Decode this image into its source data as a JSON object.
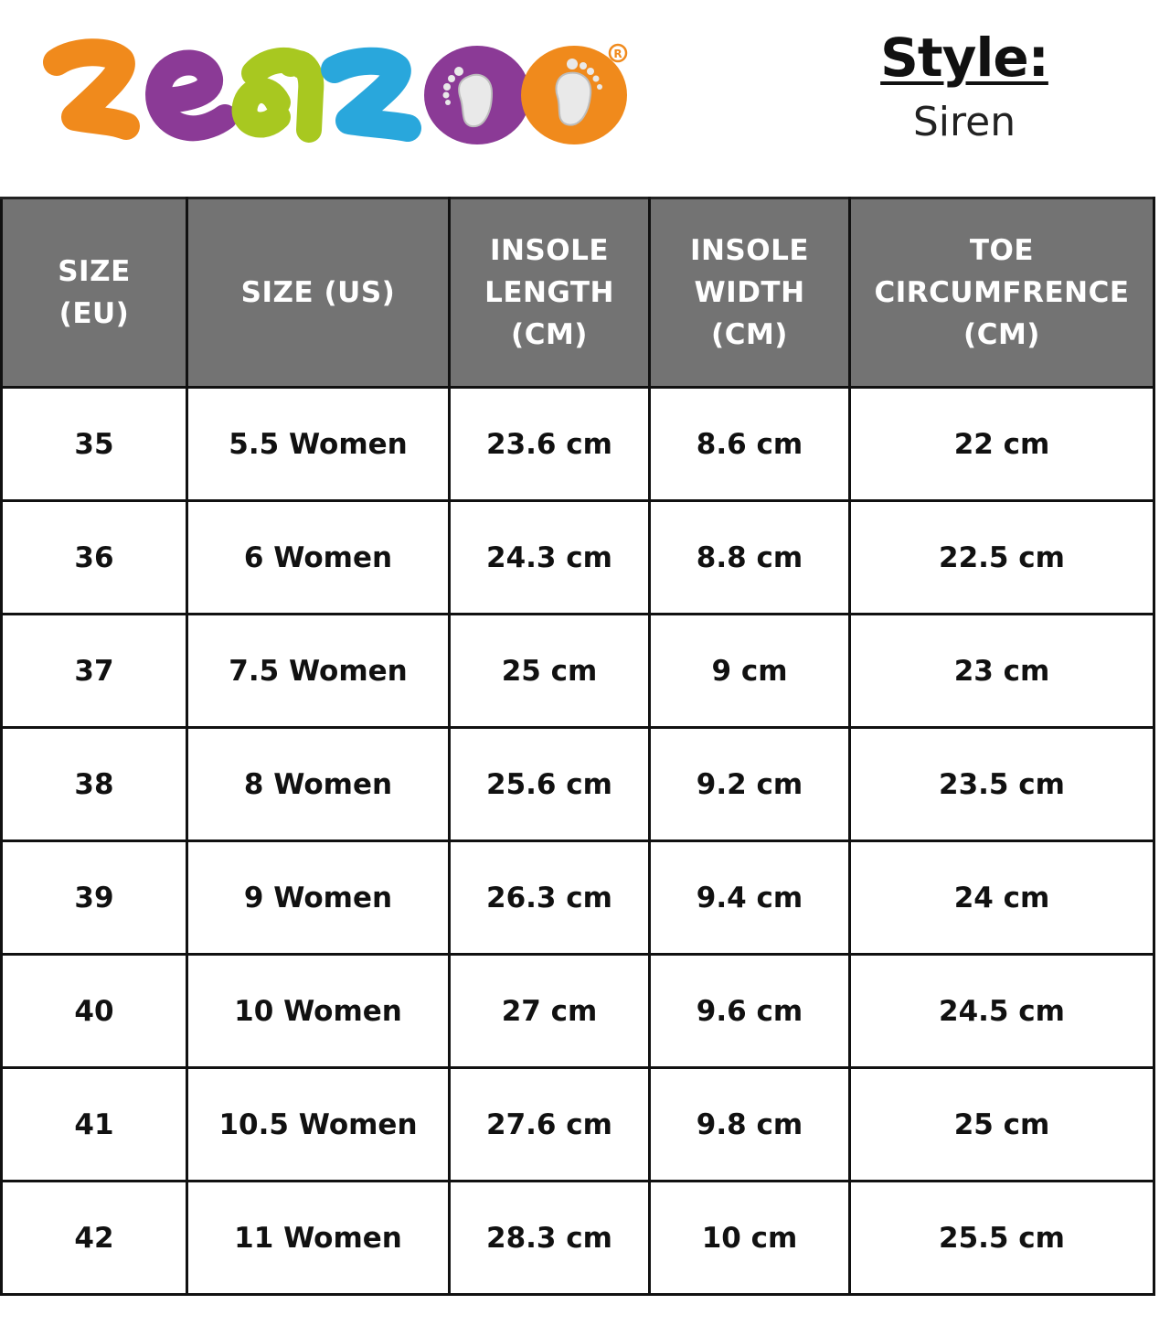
{
  "brand": {
    "logo_text": "zeazoo",
    "trademark": "®",
    "colors": [
      "#F08A1C",
      "#8B3A96",
      "#A8C820",
      "#29A7DC",
      "#8B3A96",
      "#F08A1C"
    ]
  },
  "style": {
    "label": "Style:",
    "value": "Siren"
  },
  "table": {
    "header_color": "#737373",
    "headers": [
      [
        "SIZE",
        "(EU)"
      ],
      [
        "SIZE (US)"
      ],
      [
        "INSOLE",
        "LENGTH",
        "(CM)"
      ],
      [
        "INSOLE",
        "WIDTH",
        "(CM)"
      ],
      [
        "TOE",
        "CIRCUMFRENCE",
        "(CM)"
      ]
    ],
    "rows": [
      [
        "35",
        "5.5 Women",
        "23.6 cm",
        "8.6 cm",
        "22 cm"
      ],
      [
        "36",
        "6 Women",
        "24.3 cm",
        "8.8 cm",
        "22.5 cm"
      ],
      [
        "37",
        "7.5 Women",
        "25 cm",
        "9 cm",
        "23 cm"
      ],
      [
        "38",
        "8 Women",
        "25.6 cm",
        "9.2 cm",
        "23.5 cm"
      ],
      [
        "39",
        "9 Women",
        "26.3 cm",
        "9.4 cm",
        "24 cm"
      ],
      [
        "40",
        "10 Women",
        "27 cm",
        "9.6 cm",
        "24.5 cm"
      ],
      [
        "41",
        "10.5 Women",
        "27.6 cm",
        "9.8 cm",
        "25 cm"
      ],
      [
        "42",
        "11 Women",
        "28.3 cm",
        "10 cm",
        "25.5 cm"
      ]
    ]
  }
}
